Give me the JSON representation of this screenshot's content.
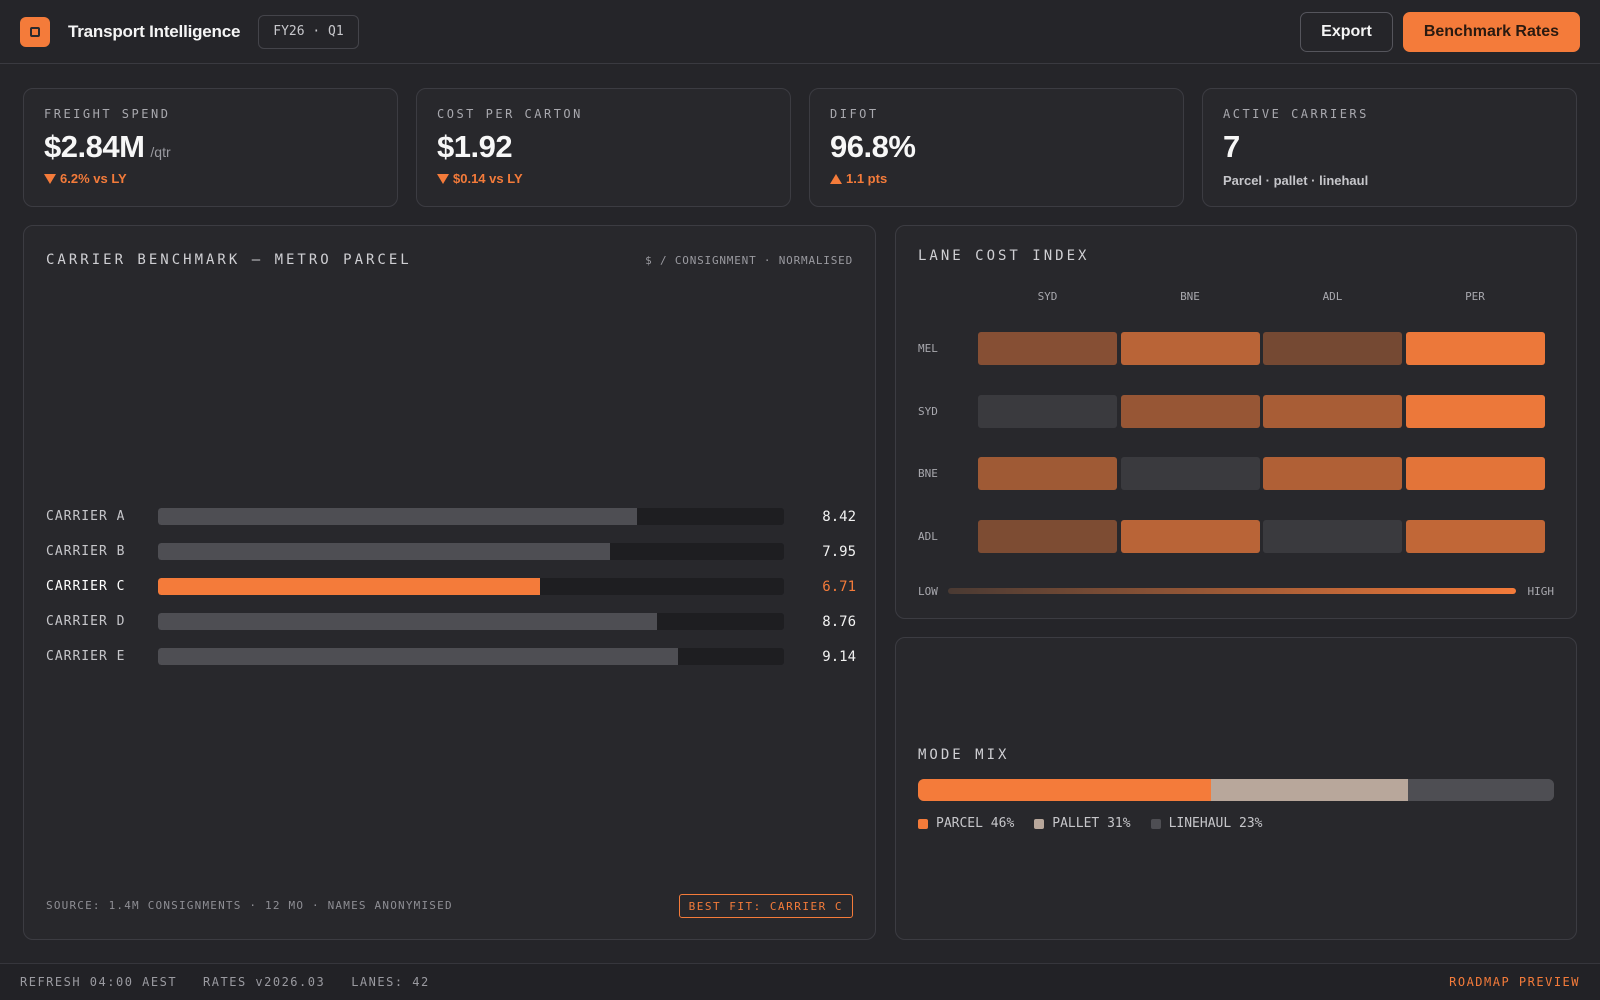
{
  "header": {
    "title": "Transport Intelligence",
    "period": "FY26 · Q1",
    "export_label": "Export",
    "benchmark_label": "Benchmark Rates"
  },
  "kpis": [
    {
      "label": "FREIGHT SPEND",
      "value": "$2.84M",
      "unit": "/qtr",
      "delta": "6.2% vs LY",
      "direction": "down"
    },
    {
      "label": "COST PER CARTON",
      "value": "$1.92",
      "delta": "$0.14 vs LY",
      "direction": "down"
    },
    {
      "label": "DIFOT",
      "value": "96.8%",
      "delta": "1.1 pts",
      "direction": "up"
    },
    {
      "label": "ACTIVE CARRIERS",
      "value": "7",
      "sub": "Parcel · pallet · linehaul"
    }
  ],
  "benchmark": {
    "title": "CARRIER BENCHMARK — METRO PARCEL",
    "unit": "$ / CONSIGNMENT · NORMALISED",
    "source": "SOURCE: 1.4M CONSIGNMENTS · 12 MO · NAMES ANONYMISED",
    "best_fit": "BEST FIT: CARRIER C"
  },
  "chart_data": {
    "type": "bar",
    "orientation": "horizontal",
    "categories": [
      "CARRIER A",
      "CARRIER B",
      "CARRIER C",
      "CARRIER D",
      "CARRIER E"
    ],
    "values": [
      8.42,
      7.95,
      6.71,
      8.76,
      9.14
    ],
    "value_labels": [
      "8.42",
      "7.95",
      "6.71",
      "8.76",
      "9.14"
    ],
    "highlight": "CARRIER C",
    "xlim": [
      0,
      11
    ],
    "colors": {
      "default": "#4e4e53",
      "highlight": "#f47b3a"
    }
  },
  "lane_index": {
    "title": "LANE COST INDEX",
    "columns": [
      "SYD",
      "BNE",
      "ADL",
      "PER"
    ],
    "rows": [
      {
        "label": "MEL",
        "levels": [
          0.35,
          0.65,
          0.25,
          0.95
        ]
      },
      {
        "label": "SYD",
        "levels": [
          0.0,
          0.45,
          0.55,
          0.95
        ]
      },
      {
        "label": "BNE",
        "levels": [
          0.5,
          0.0,
          0.6,
          0.9
        ]
      },
      {
        "label": "ADL",
        "levels": [
          0.3,
          0.65,
          0.0,
          0.7
        ]
      }
    ],
    "legend_low": "LOW",
    "legend_high": "HIGH"
  },
  "mode_mix": {
    "title": "MODE MIX",
    "segments": [
      {
        "key": "parcel",
        "label": "PARCEL 46%",
        "value": 46,
        "color": "#f47b3a"
      },
      {
        "key": "pallet",
        "label": "PALLET 31%",
        "value": 31,
        "color": "#b8a79b"
      },
      {
        "key": "linehaul",
        "label": "LINEHAUL 23%",
        "value": 23,
        "color": "#4e4e53"
      }
    ]
  },
  "footer": {
    "refresh": "REFRESH 04:00 AEST",
    "rates": "RATES v2026.03",
    "lanes": "LANES: 42",
    "roadmap": "ROADMAP PREVIEW"
  },
  "colors": {
    "accent": "#f47b3a",
    "background": "#252529",
    "panel": "#28282c"
  }
}
